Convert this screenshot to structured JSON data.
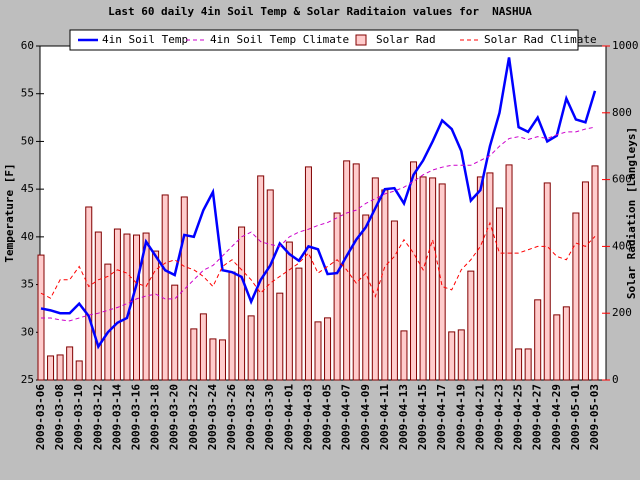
{
  "chart_data": {
    "type": "combo",
    "title": "Last 60 daily 4in Soil Temp & Solar Raditaion values for  NASHUA",
    "y_label": "Temperature [F]",
    "y2_label": "Solar Radiation [Langleys]",
    "categories": [
      "2009-03-06",
      null,
      "2009-03-08",
      null,
      "2009-03-10",
      null,
      "2009-03-12",
      null,
      "2009-03-14",
      null,
      "2009-03-16",
      null,
      "2009-03-18",
      null,
      "2009-03-20",
      null,
      "2009-03-22",
      null,
      "2009-03-24",
      null,
      "2009-03-26",
      null,
      "2009-03-28",
      null,
      "2009-03-30",
      null,
      "2009-04-01",
      null,
      "2009-04-03",
      null,
      "2009-04-05",
      null,
      "2009-04-07",
      null,
      "2009-04-09",
      null,
      "2009-04-11",
      null,
      "2009-04-13",
      null,
      "2009-04-15",
      null,
      "2009-04-17",
      null,
      "2009-04-19",
      null,
      "2009-04-21",
      null,
      "2009-04-23",
      null,
      "2009-04-25",
      null,
      "2009-04-27",
      null,
      "2009-04-29",
      null,
      "2009-05-01",
      null,
      "2009-05-03"
    ],
    "ylim": [
      25,
      60
    ],
    "yticks": [
      25,
      30,
      35,
      40,
      45,
      50,
      55,
      60
    ],
    "y2lim": [
      0,
      1000
    ],
    "y2ticks": [
      0,
      200,
      400,
      600,
      800,
      1000
    ],
    "y2_color": "#ff0000",
    "series": [
      {
        "name": "4in Soil Temp",
        "type": "line",
        "dash": false,
        "color": "#0000ff",
        "values": [
          32.5,
          32.3,
          32,
          32,
          33,
          31.7,
          28.5,
          30,
          31,
          31.5,
          35,
          39.5,
          38,
          36.5,
          36,
          40.2,
          40,
          42.8,
          44.7,
          36.5,
          36.3,
          35.8,
          33.2,
          35.5,
          37,
          39.3,
          38.2,
          37.5,
          39,
          38.7,
          36.1,
          36.2,
          38,
          39.7,
          41,
          43,
          45,
          45.1,
          43.5,
          46.5,
          48,
          50,
          52.2,
          51.3,
          49,
          43.8,
          44.9,
          49.5,
          53,
          58.8,
          51.5,
          51,
          52.5,
          50,
          50.6,
          54.5,
          52.3,
          52,
          55.3
        ]
      },
      {
        "name": "4in Soil Temp Climate",
        "type": "line",
        "dash": true,
        "color": "#cc00cc",
        "values": [
          31.5,
          31.5,
          31.3,
          31.2,
          31.5,
          31.8,
          32,
          32.3,
          32.6,
          33,
          33.5,
          33.8,
          34,
          33.5,
          33.5,
          34.5,
          35.5,
          36.5,
          37,
          38,
          39,
          40,
          40.5,
          39.5,
          39.2,
          39,
          40,
          40.5,
          40.8,
          41.2,
          41.5,
          42,
          42.5,
          42.8,
          43.5,
          44,
          44.5,
          44.8,
          45.2,
          45.8,
          46.5,
          47,
          47.3,
          47.5,
          47.5,
          47.5,
          48,
          48.5,
          49.5,
          50.3,
          50.5,
          50.2,
          50.5,
          50.3,
          50.7,
          51,
          51,
          51.3,
          51.5
        ]
      },
      {
        "name": "Solar Rad",
        "type": "bar",
        "axis": "y2",
        "color": "#ffcccc",
        "edge": "#800000",
        "values": [
          374,
          72,
          75,
          99,
          57,
          518,
          443,
          347,
          452,
          437,
          434,
          440,
          386,
          554,
          284,
          548,
          153,
          198,
          123,
          120,
          323,
          458,
          192,
          611,
          569,
          260,
          413,
          335,
          638,
          174,
          186,
          500,
          656,
          647,
          494,
          605,
          569,
          476,
          147,
          653,
          608,
          605,
          587,
          144,
          150,
          326,
          608,
          620,
          515,
          644,
          93,
          93,
          240,
          590,
          195,
          219,
          500,
          593,
          641
        ]
      },
      {
        "name": "Solar Rad Climate",
        "type": "line",
        "axis": "y2",
        "dash": true,
        "color": "#ff0000",
        "values": [
          260,
          245,
          300,
          300,
          340,
          280,
          300,
          310,
          330,
          320,
          290,
          280,
          330,
          350,
          360,
          340,
          330,
          310,
          280,
          340,
          360,
          330,
          300,
          260,
          290,
          310,
          330,
          350,
          380,
          320,
          340,
          360,
          330,
          290,
          320,
          250,
          340,
          370,
          420,
          380,
          330,
          420,
          280,
          270,
          330,
          360,
          400,
          470,
          380,
          380,
          380,
          390,
          400,
          400,
          370,
          360,
          410,
          400,
          430
        ]
      }
    ]
  }
}
